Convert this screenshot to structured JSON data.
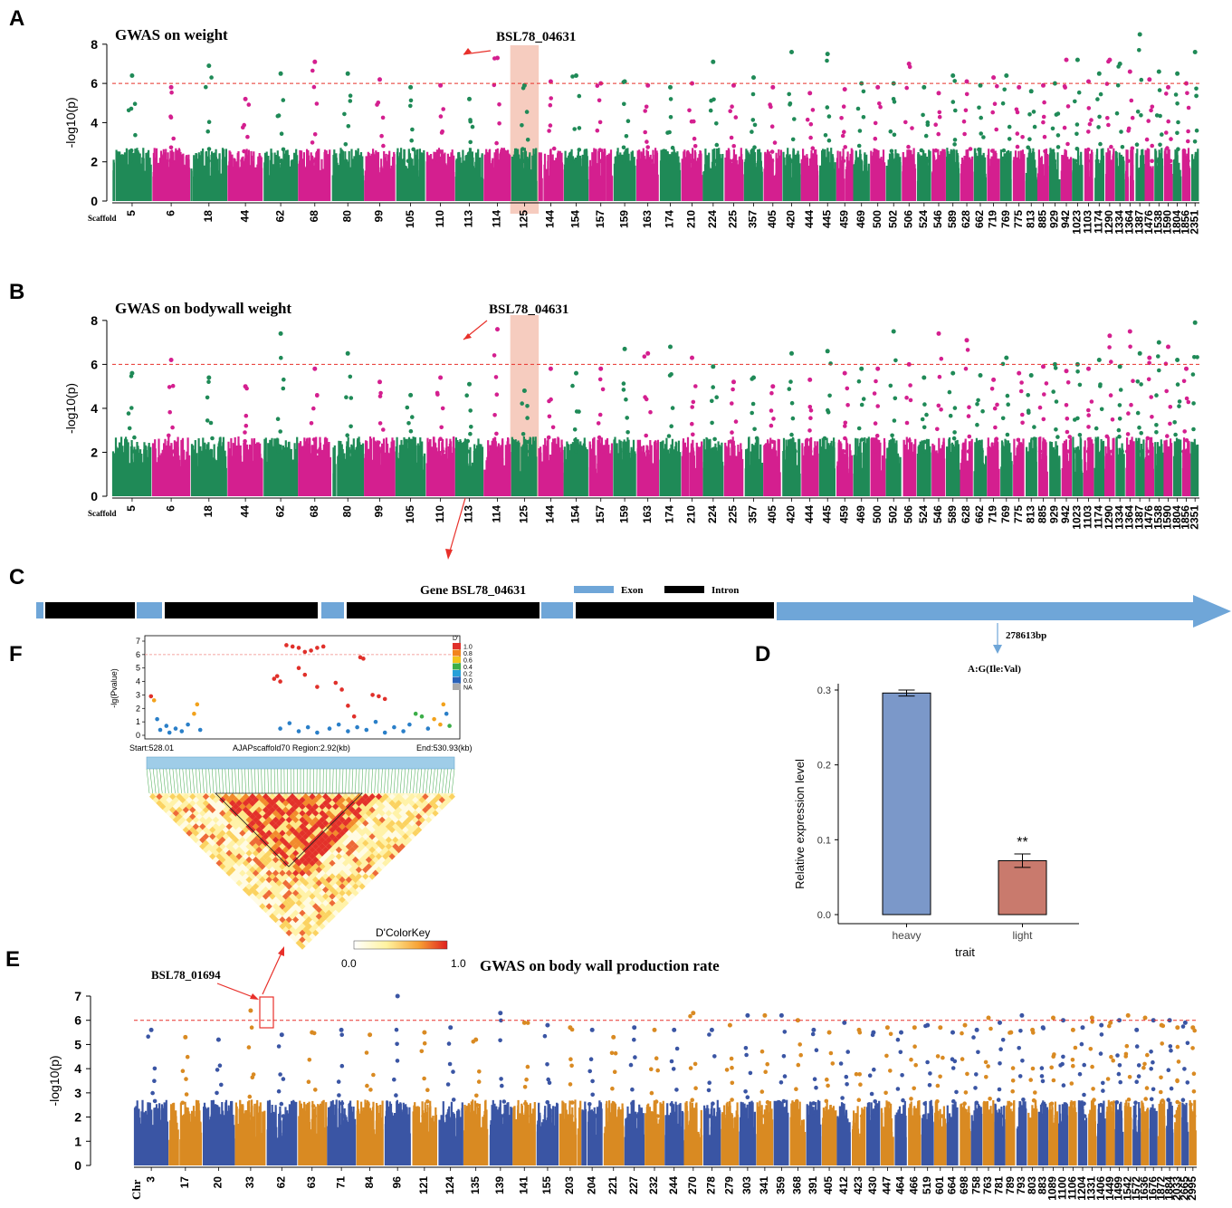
{
  "colors": {
    "green": "#1f8a57",
    "magenta": "#d41f8f",
    "blue": "#3a55a4",
    "orange": "#d98a22",
    "threshold": "#e8302a",
    "highlight": "#f4c3b4",
    "arrow": "#e8302a",
    "exon": "#6fa6d8",
    "intron": "#000000",
    "bar_heavy": "#7b98c9",
    "bar_light": "#c97a6d"
  },
  "chart_data": [
    {
      "id": "A",
      "type": "scatter",
      "panel_label": "A",
      "title": "GWAS on weight",
      "ylabel": "-log10(p)",
      "xlabel_prefix": "Scaffold",
      "ylim": [
        0,
        8.5
      ],
      "yticks": [
        0,
        2,
        4,
        6,
        8
      ],
      "threshold": 6,
      "annotation": "BSL78_04631",
      "highlight_index": 12,
      "colors": [
        "green",
        "magenta"
      ],
      "categories": [
        "5",
        "6",
        "18",
        "44",
        "62",
        "68",
        "80",
        "99",
        "105",
        "110",
        "113",
        "114",
        "125",
        "144",
        "154",
        "157",
        "159",
        "163",
        "174",
        "210",
        "224",
        "225",
        "357",
        "405",
        "420",
        "444",
        "445",
        "459",
        "469",
        "500",
        "502",
        "506",
        "524",
        "546",
        "589",
        "628",
        "662",
        "719",
        "769",
        "775",
        "813",
        "885",
        "929",
        "942",
        "1023",
        "1103",
        "1174",
        "1290",
        "1334",
        "1364",
        "1387",
        "1476",
        "1538",
        "1590",
        "1804",
        "1856",
        "2351"
      ],
      "peaks": [
        6.4,
        5.8,
        6.9,
        5.2,
        6.5,
        7.1,
        6.5,
        6.2,
        5.8,
        5.9,
        5.2,
        7.3,
        5.9,
        6.1,
        6.4,
        6.0,
        6.1,
        5.9,
        5.8,
        6.0,
        7.1,
        5.9,
        6.3,
        5.8,
        7.6,
        5.5,
        7.5,
        5.7,
        6.0,
        5.8,
        6.0,
        7.0,
        5.8,
        5.5,
        6.4,
        6.1,
        5.9,
        6.3,
        6.4,
        5.8,
        5.6,
        5.9,
        6.0,
        7.2,
        7.2,
        6.1,
        6.5,
        7.2,
        7.0,
        6.6,
        8.5,
        6.2,
        6.6,
        5.8,
        6.5,
        6.0,
        7.6
      ]
    },
    {
      "id": "B",
      "type": "scatter",
      "panel_label": "B",
      "title": "GWAS on bodywall weight",
      "ylabel": "-log10(p)",
      "xlabel_prefix": "Scaffold",
      "ylim": [
        0,
        8.2
      ],
      "yticks": [
        0,
        2,
        4,
        6,
        8
      ],
      "threshold": 6,
      "annotation": "BSL78_04631",
      "highlight_index": 12,
      "colors": [
        "green",
        "magenta"
      ],
      "categories": [
        "5",
        "6",
        "18",
        "44",
        "62",
        "68",
        "80",
        "99",
        "105",
        "110",
        "113",
        "114",
        "125",
        "144",
        "154",
        "157",
        "159",
        "163",
        "174",
        "210",
        "224",
        "225",
        "357",
        "405",
        "420",
        "444",
        "445",
        "459",
        "469",
        "500",
        "502",
        "506",
        "524",
        "546",
        "589",
        "628",
        "662",
        "719",
        "769",
        "775",
        "813",
        "885",
        "929",
        "942",
        "1023",
        "1103",
        "1174",
        "1290",
        "1334",
        "1364",
        "1387",
        "1476",
        "1538",
        "1590",
        "1804",
        "1856",
        "2351"
      ],
      "peaks": [
        5.6,
        6.2,
        5.4,
        5.0,
        7.4,
        5.8,
        6.5,
        5.2,
        4.6,
        5.4,
        5.1,
        7.6,
        4.8,
        5.8,
        5.6,
        5.8,
        6.7,
        6.5,
        6.8,
        6.3,
        5.9,
        5.2,
        5.4,
        5.0,
        6.5,
        5.3,
        6.6,
        5.6,
        5.8,
        5.8,
        7.5,
        6.0,
        5.4,
        7.4,
        5.6,
        7.1,
        5.5,
        5.3,
        6.3,
        5.6,
        5.5,
        5.9,
        6.0,
        5.7,
        6.0,
        5.8,
        6.2,
        7.3,
        5.9,
        7.5,
        6.5,
        6.3,
        7.0,
        6.8,
        6.2,
        5.8,
        7.9
      ]
    },
    {
      "id": "E",
      "type": "scatter",
      "panel_label": "E",
      "title": "GWAS on body wall production rate",
      "ylabel": "-log10(p)",
      "xlabel_prefix": "Chr",
      "ylim": [
        0,
        7
      ],
      "yticks": [
        0,
        1,
        2,
        3,
        4,
        5,
        6,
        7
      ],
      "threshold": 6,
      "annotation": "BSL78_01694",
      "colors": [
        "blue",
        "orange"
      ],
      "categories": [
        "3",
        "17",
        "20",
        "33",
        "62",
        "63",
        "71",
        "84",
        "96",
        "121",
        "124",
        "135",
        "139",
        "141",
        "155",
        "203",
        "204",
        "221",
        "227",
        "232",
        "244",
        "270",
        "278",
        "279",
        "303",
        "341",
        "359",
        "368",
        "391",
        "405",
        "412",
        "423",
        "430",
        "447",
        "464",
        "466",
        "519",
        "601",
        "664",
        "698",
        "758",
        "763",
        "781",
        "789",
        "793",
        "803",
        "883",
        "1089",
        "1100",
        "1106",
        "1204",
        "1331",
        "1406",
        "1449",
        "1499",
        "1542",
        "1572",
        "1636",
        "1676",
        "1872",
        "1884",
        "2033",
        "2665",
        "2995"
      ],
      "peaks": [
        5.6,
        5.3,
        5.2,
        6.4,
        5.4,
        5.5,
        5.6,
        5.4,
        7.0,
        5.5,
        5.7,
        5.2,
        6.3,
        5.9,
        5.8,
        5.7,
        5.6,
        5.3,
        5.7,
        5.6,
        5.6,
        6.3,
        5.6,
        5.8,
        6.2,
        6.2,
        6.2,
        6.0,
        5.6,
        5.5,
        5.9,
        5.6,
        5.5,
        5.7,
        5.5,
        5.7,
        5.8,
        5.7,
        5.5,
        5.8,
        5.6,
        6.1,
        5.9,
        5.5,
        6.2,
        5.6,
        5.7,
        6.1,
        6.0,
        5.6,
        5.7,
        6.1,
        5.8,
        5.9,
        6.0,
        6.2,
        5.6,
        6.1,
        6.0,
        5.8,
        6.0,
        5.7,
        5.9,
        5.7
      ]
    },
    {
      "id": "D",
      "type": "bar",
      "panel_label": "D",
      "categories": [
        "heavy",
        "light"
      ],
      "values": [
        0.296,
        0.072
      ],
      "errors": [
        0.004,
        0.009
      ],
      "ylim": [
        0,
        0.3
      ],
      "yticks": [
        "0.0",
        "0.1",
        "0.2",
        "0.3"
      ],
      "ylabel": "Relative expression level",
      "xlabel": "trait",
      "significance": "**",
      "variant": "A:G(Ile:Val)",
      "position_label": "278613bp"
    },
    {
      "id": "F",
      "type": "scatter",
      "panel_label": "F",
      "ylabel": "-lg(Pvalue)",
      "ylim": [
        0,
        7
      ],
      "yticks": [
        "0",
        "1",
        "2",
        "3",
        "4",
        "5",
        "6",
        "7"
      ],
      "threshold": 6,
      "start_label": "Start:528.01",
      "region_label": "AJAPscaffold70 Region:2.92(kb)",
      "end_label": "End:530.93(kb)",
      "legend_title": "D'",
      "legend_items": [
        "1.0",
        "0.8",
        "0.6",
        "0.4",
        "0.2",
        "0.0",
        "NA"
      ],
      "colorkey_title": "D'ColorKey",
      "colorkey_min": "0.0",
      "colorkey_max": "1.0",
      "points": [
        [
          0.03,
          2.6,
          "orange"
        ],
        [
          0.04,
          1.2,
          "blue"
        ],
        [
          0.05,
          0.4,
          "blue"
        ],
        [
          0.07,
          0.7,
          "blue"
        ],
        [
          0.08,
          0.2,
          "blue"
        ],
        [
          0.1,
          0.5,
          "blue"
        ],
        [
          0.12,
          0.3,
          "blue"
        ],
        [
          0.14,
          0.8,
          "blue"
        ],
        [
          0.16,
          1.6,
          "orange"
        ],
        [
          0.17,
          2.3,
          "orange"
        ],
        [
          0.18,
          0.4,
          "blue"
        ],
        [
          0.02,
          2.9,
          "red"
        ],
        [
          0.42,
          4.2,
          "red"
        ],
        [
          0.43,
          4.4,
          "red"
        ],
        [
          0.44,
          4.0,
          "red"
        ],
        [
          0.46,
          6.7,
          "red"
        ],
        [
          0.48,
          6.6,
          "red"
        ],
        [
          0.5,
          6.5,
          "red"
        ],
        [
          0.52,
          6.2,
          "red"
        ],
        [
          0.54,
          6.3,
          "red"
        ],
        [
          0.56,
          6.5,
          "red"
        ],
        [
          0.58,
          6.6,
          "red"
        ],
        [
          0.5,
          5.0,
          "red"
        ],
        [
          0.52,
          4.5,
          "red"
        ],
        [
          0.56,
          3.6,
          "red"
        ],
        [
          0.62,
          3.9,
          "red"
        ],
        [
          0.64,
          3.4,
          "red"
        ],
        [
          0.66,
          2.2,
          "red"
        ],
        [
          0.68,
          1.4,
          "red"
        ],
        [
          0.7,
          5.8,
          "red"
        ],
        [
          0.71,
          5.7,
          "red"
        ],
        [
          0.74,
          3.0,
          "red"
        ],
        [
          0.76,
          2.9,
          "red"
        ],
        [
          0.78,
          2.7,
          "red"
        ],
        [
          0.44,
          0.5,
          "blue"
        ],
        [
          0.47,
          0.9,
          "blue"
        ],
        [
          0.5,
          0.3,
          "blue"
        ],
        [
          0.53,
          0.6,
          "blue"
        ],
        [
          0.56,
          0.2,
          "blue"
        ],
        [
          0.6,
          0.5,
          "blue"
        ],
        [
          0.63,
          0.8,
          "blue"
        ],
        [
          0.66,
          0.3,
          "blue"
        ],
        [
          0.69,
          0.6,
          "blue"
        ],
        [
          0.72,
          0.4,
          "blue"
        ],
        [
          0.75,
          1.0,
          "blue"
        ],
        [
          0.78,
          0.2,
          "blue"
        ],
        [
          0.81,
          0.6,
          "blue"
        ],
        [
          0.84,
          0.3,
          "blue"
        ],
        [
          0.86,
          0.8,
          "blue"
        ],
        [
          0.88,
          1.6,
          "green"
        ],
        [
          0.9,
          1.4,
          "green"
        ],
        [
          0.92,
          0.5,
          "blue"
        ],
        [
          0.94,
          1.2,
          "orange"
        ],
        [
          0.96,
          0.8,
          "orange"
        ],
        [
          0.97,
          2.3,
          "orange"
        ],
        [
          0.98,
          1.6,
          "blue"
        ],
        [
          0.99,
          0.7,
          "green"
        ]
      ]
    }
  ],
  "panel_C": {
    "label": "C",
    "gene_title": "Gene BSL78_04631",
    "exon_label": "Exon",
    "intron_label": "Intron"
  }
}
